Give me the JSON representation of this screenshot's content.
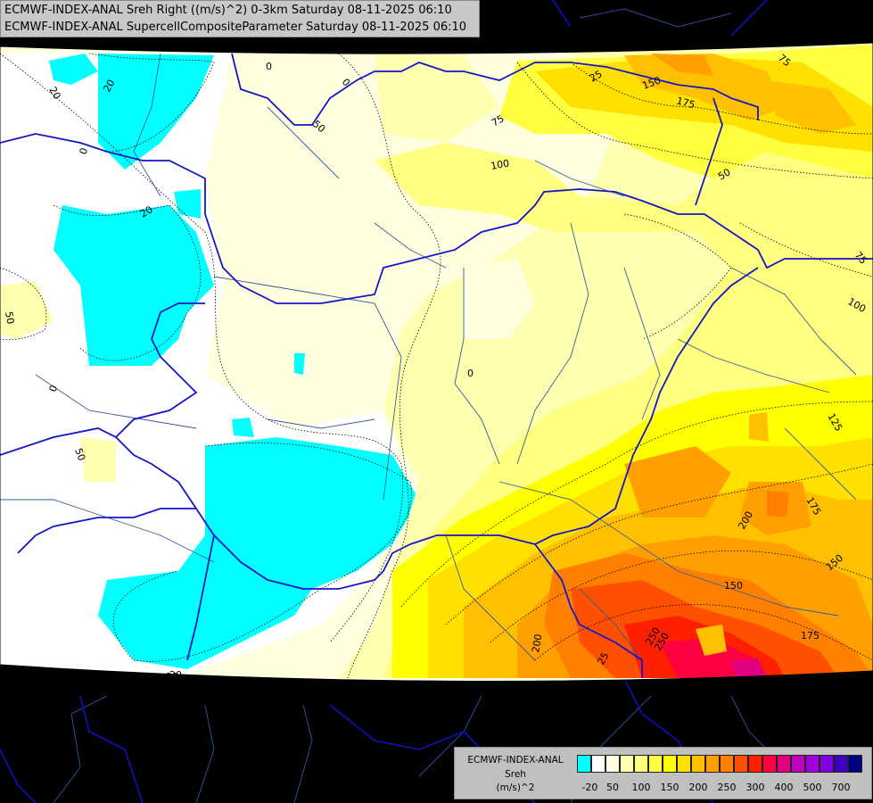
{
  "title": {
    "line1": "ECMWF-INDEX-ANAL Sreh Right ((m/s)^2) 0-3km Saturday 08-11-2025 06:10",
    "line2": "ECMWF-INDEX-ANAL SupercellCompositeParameter Saturday 08-11-2025 06:10"
  },
  "legend": {
    "line1": "ECMWF-INDEX-ANAL",
    "line2": "Sreh",
    "line3": "(m/s)^2",
    "colors": [
      "#00ffff",
      "#ffffff",
      "#ffffe0",
      "#ffffb0",
      "#ffff80",
      "#ffff40",
      "#ffff00",
      "#ffe000",
      "#ffc000",
      "#ffa000",
      "#ff8000",
      "#ff5000",
      "#ff2000",
      "#ff0040",
      "#e00080",
      "#c000c0",
      "#a000e0",
      "#8000e0",
      "#4000c0",
      "#000080"
    ],
    "ticks": [
      "-20",
      "50",
      "100",
      "150",
      "200",
      "250",
      "300",
      "400",
      "500",
      "700"
    ]
  },
  "contour_labels": [
    "20",
    "20",
    "0",
    "20",
    "50",
    "50",
    "0",
    "0",
    "50",
    "0",
    "0",
    "20",
    "20",
    "25",
    "150",
    "175",
    "75",
    "75",
    "100",
    "50",
    "75",
    "100",
    "125",
    "175",
    "200",
    "150",
    "150",
    "175",
    "200",
    "250",
    "250",
    "25"
  ]
}
